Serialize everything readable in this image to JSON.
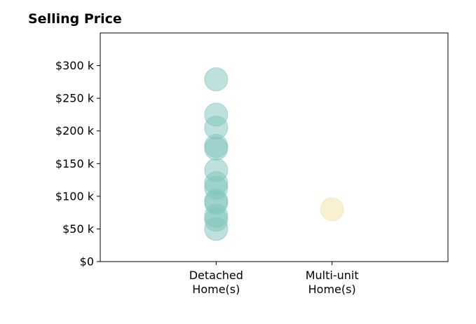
{
  "chart_data": {
    "type": "scatter",
    "title": "Selling Price",
    "xlabel": "",
    "ylabel": "",
    "categories": [
      "Detached\nHome(s)",
      "Multi-unit\nHome(s)"
    ],
    "y_ticks": [
      {
        "value": 0,
        "label": "$0"
      },
      {
        "value": 50000,
        "label": "$50 k"
      },
      {
        "value": 100000,
        "label": "$100 k"
      },
      {
        "value": 150000,
        "label": "$150 k"
      },
      {
        "value": 200000,
        "label": "$200 k"
      },
      {
        "value": 250000,
        "label": "$250 k"
      },
      {
        "value": 300000,
        "label": "$300 k"
      }
    ],
    "ylim": [
      0,
      350000
    ],
    "xlim": [
      0,
      3
    ],
    "grid": false,
    "series": [
      {
        "category_index": 0,
        "color": "#7ec4bb",
        "values": [
          279000,
          225000,
          205000,
          177000,
          173000,
          140000,
          120000,
          113000,
          93000,
          90000,
          70000,
          64000,
          50000
        ]
      },
      {
        "category_index": 1,
        "color": "#f3dfa8",
        "values": [
          80000
        ]
      }
    ]
  }
}
